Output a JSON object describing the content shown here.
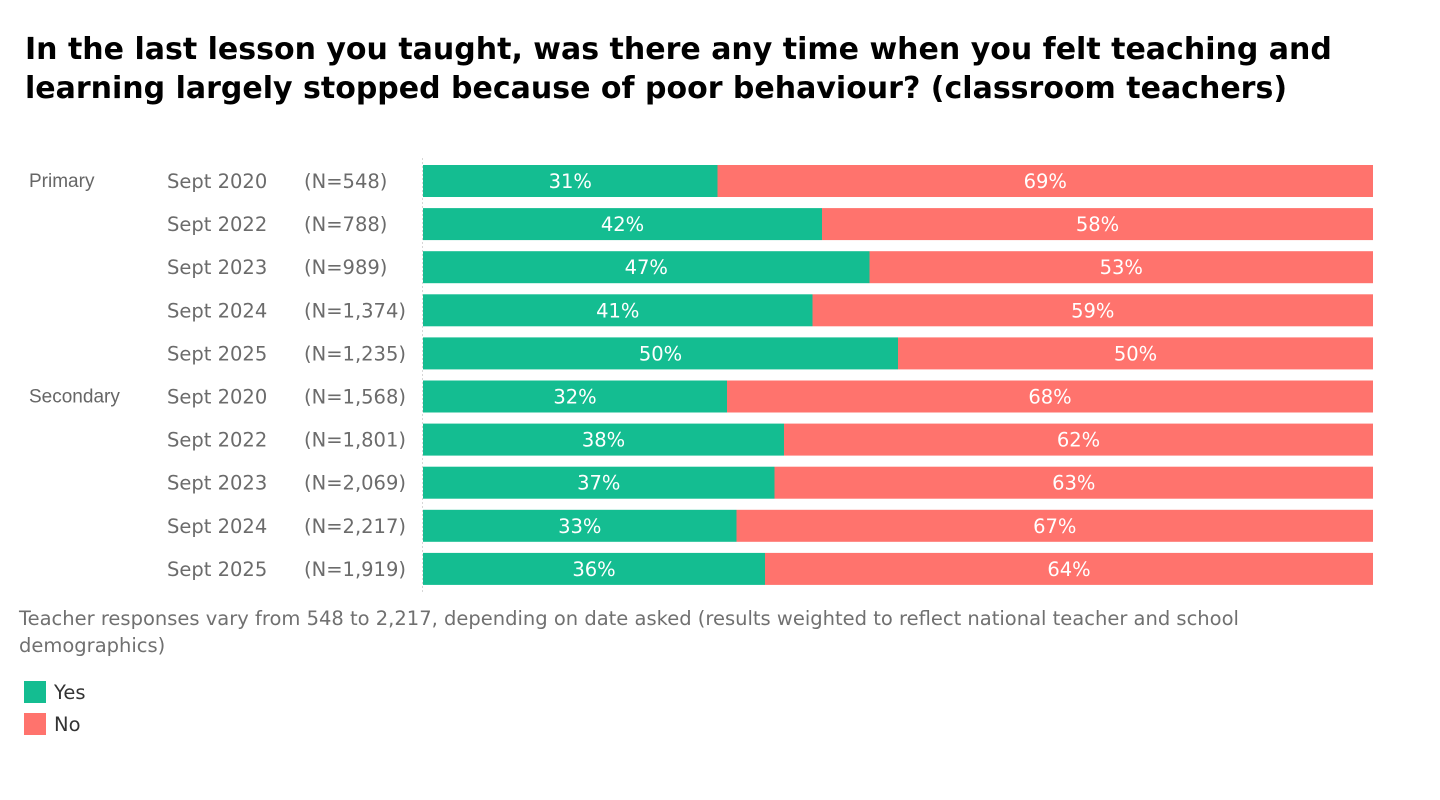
{
  "chart_data": {
    "type": "bar",
    "orientation": "horizontal",
    "stacked": true,
    "percent_stacked": true,
    "title": "In the last lesson you taught, was there any time when you felt teaching and learning largely stopped because of poor behaviour? (classroom teachers)",
    "xlabel": "",
    "ylabel": "",
    "xlim": [
      0,
      100
    ],
    "grid": false,
    "legend_position": "bottom-left",
    "rows": [
      {
        "group": "Primary",
        "date": "Sept 2020",
        "n": "(N=548)"
      },
      {
        "group": "",
        "date": "Sept 2022",
        "n": "(N=788)"
      },
      {
        "group": "",
        "date": "Sept 2023",
        "n": "(N=989)"
      },
      {
        "group": "",
        "date": "Sept 2024",
        "n": "(N=1,374)"
      },
      {
        "group": "",
        "date": "Sept 2025",
        "n": "(N=1,235)"
      },
      {
        "group": "Secondary",
        "date": "Sept 2020",
        "n": "(N=1,568)"
      },
      {
        "group": "",
        "date": "Sept 2022",
        "n": "(N=1,801)"
      },
      {
        "group": "",
        "date": "Sept 2023",
        "n": "(N=2,069)"
      },
      {
        "group": "",
        "date": "Sept 2024",
        "n": "(N=2,217)"
      },
      {
        "group": "",
        "date": "Sept 2025",
        "n": "(N=1,919)"
      }
    ],
    "series": [
      {
        "name": "Yes",
        "color": "#14BD91",
        "values": [
          31,
          42,
          47,
          41,
          50,
          32,
          38,
          37,
          33,
          36
        ]
      },
      {
        "name": "No",
        "color": "#FF736D",
        "values": [
          69,
          58,
          53,
          59,
          50,
          68,
          62,
          63,
          67,
          64
        ]
      }
    ],
    "value_suffix": "%",
    "footnote": "Teacher responses vary from 548 to 2,217, depending on date asked (results weighted to reflect national teacher and school demographics)"
  },
  "legend": [
    {
      "label": "Yes",
      "color": "#14BD91"
    },
    {
      "label": "No",
      "color": "#FF736D"
    }
  ]
}
